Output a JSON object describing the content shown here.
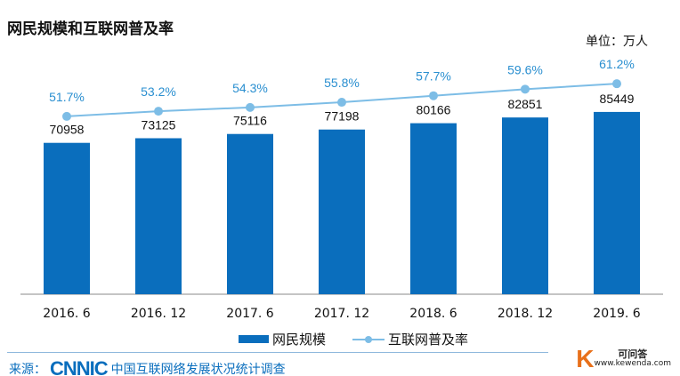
{
  "chart_data": {
    "type": "bar",
    "title": "网民规模和互联网普及率",
    "unit_label": "单位：万人",
    "categories": [
      "2016. 6",
      "2016. 12",
      "2017. 6",
      "2017. 12",
      "2018. 6",
      "2018. 12",
      "2019. 6"
    ],
    "series": [
      {
        "name": "网民规模",
        "type": "bar",
        "values": [
          70958,
          73125,
          75116,
          77198,
          80166,
          82851,
          85449
        ],
        "labels": [
          "70958",
          "73125",
          "75116",
          "77198",
          "80166",
          "82851",
          "85449"
        ],
        "color": "#0a6ebd"
      },
      {
        "name": "互联网普及率",
        "type": "line",
        "values": [
          51.7,
          53.2,
          54.3,
          55.8,
          57.7,
          59.6,
          61.2
        ],
        "labels": [
          "51.7%",
          "53.2%",
          "54.3%",
          "55.8%",
          "57.7%",
          "59.6%",
          "61.2%"
        ],
        "color": "#7dbde6"
      }
    ],
    "grid": false,
    "legend": "bottom"
  },
  "footer": {
    "source_prefix": "来源：",
    "source_logo": "CNNIC",
    "source_text": "中国互联网络发展状况统计调查",
    "watermark_logo": "K",
    "watermark_name": "可问答",
    "watermark_url": "www.kewenda.com"
  }
}
